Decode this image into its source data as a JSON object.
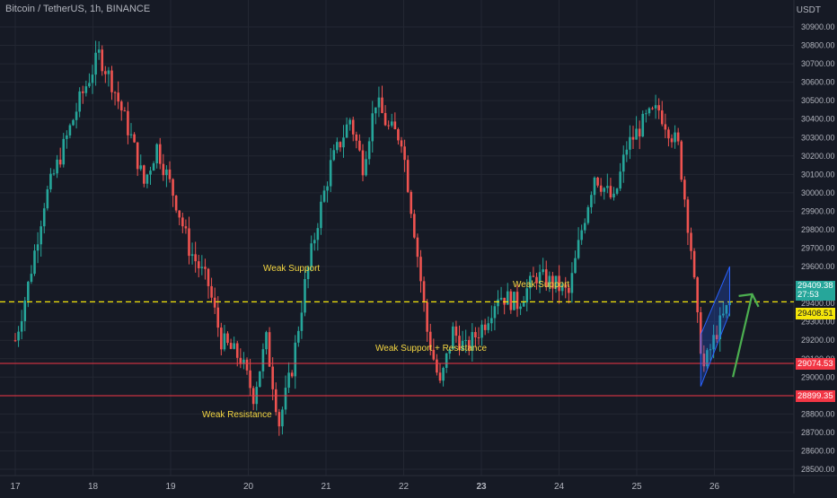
{
  "header": {
    "title": "Bitcoin / TetherUS, 1h, BINANCE",
    "unit": "USDT"
  },
  "price_tags": {
    "last_price": "29409.38",
    "countdown": "27:53",
    "dashed_line_price": "29408.51",
    "upper_support": "29074.53",
    "lower_support": "28899.35"
  },
  "annotations": {
    "weak_support_left": "Weak Support",
    "weak_support_right": "Weak Support",
    "weak_support_resistance": "Weak Support + Resistance",
    "weak_resistance": "Weak Resistance"
  },
  "colors": {
    "background": "#161a25",
    "bullish": "#26a69a",
    "bearish": "#ef5350",
    "grid": "#232732",
    "support_line": "#f23645",
    "dashed_line": "#f5e60a",
    "last_price_tag": "#26a69a",
    "annotation_text": "#f5d742",
    "channel": "#2962ff",
    "arrow": "#4caf50"
  },
  "chart_data": {
    "type": "candlestick",
    "symbol": "BTCUSDT",
    "interval": "1h",
    "ylim": [
      28450,
      31000
    ],
    "y_ticks": [
      "28500.00",
      "28600.00",
      "28700.00",
      "28800.00",
      "28900.00",
      "29000.00",
      "29100.00",
      "29200.00",
      "29300.00",
      "29400.00",
      "29500.00",
      "29600.00",
      "29700.00",
      "29800.00",
      "29900.00",
      "30000.00",
      "30100.00",
      "30200.00",
      "30300.00",
      "30400.00",
      "30500.00",
      "30600.00",
      "30700.00",
      "30800.00",
      "30900.00"
    ],
    "x_ticks": [
      "17",
      "18",
      "19",
      "20",
      "21",
      "22",
      "23",
      "24",
      "25",
      "26"
    ],
    "horizontal_lines": [
      {
        "price": 29074.53,
        "style": "solid"
      },
      {
        "price": 28899.35,
        "style": "solid"
      },
      {
        "price": 29408.51,
        "style": "dashed"
      }
    ],
    "close_path": [
      [
        0,
        29200
      ],
      [
        4,
        29500
      ],
      [
        9,
        29950
      ],
      [
        14,
        30200
      ],
      [
        20,
        30500
      ],
      [
        26,
        30750
      ],
      [
        30,
        30600
      ],
      [
        36,
        30300
      ],
      [
        40,
        30050
      ],
      [
        44,
        30250
      ],
      [
        50,
        29950
      ],
      [
        54,
        29700
      ],
      [
        60,
        29500
      ],
      [
        64,
        29200
      ],
      [
        70,
        29100
      ],
      [
        74,
        28900
      ],
      [
        78,
        29200
      ],
      [
        82,
        28750
      ],
      [
        86,
        29050
      ],
      [
        90,
        29500
      ],
      [
        94,
        29850
      ],
      [
        98,
        30150
      ],
      [
        104,
        30400
      ],
      [
        108,
        30150
      ],
      [
        112,
        30500
      ],
      [
        116,
        30350
      ],
      [
        120,
        30300
      ],
      [
        124,
        29800
      ],
      [
        128,
        29250
      ],
      [
        132,
        28950
      ],
      [
        136,
        29250
      ],
      [
        140,
        29150
      ],
      [
        146,
        29300
      ],
      [
        150,
        29450
      ],
      [
        156,
        29400
      ],
      [
        162,
        29550
      ],
      [
        168,
        29500
      ],
      [
        172,
        29450
      ],
      [
        176,
        29800
      ],
      [
        180,
        30100
      ],
      [
        186,
        29950
      ],
      [
        190,
        30250
      ],
      [
        196,
        30400
      ],
      [
        200,
        30450
      ],
      [
        206,
        30250
      ],
      [
        210,
        29700
      ],
      [
        212,
        29300
      ],
      [
        214,
        29050
      ],
      [
        218,
        29250
      ],
      [
        222,
        29400
      ]
    ],
    "channel": {
      "lower_start": [
        213,
        28950
      ],
      "lower_end": [
        222,
        29350
      ],
      "upper_start": [
        213,
        29230
      ],
      "upper_end": [
        222,
        29600
      ]
    },
    "arrow": {
      "from": [
        223,
        29000
      ],
      "to": [
        229,
        29450
      ]
    }
  }
}
